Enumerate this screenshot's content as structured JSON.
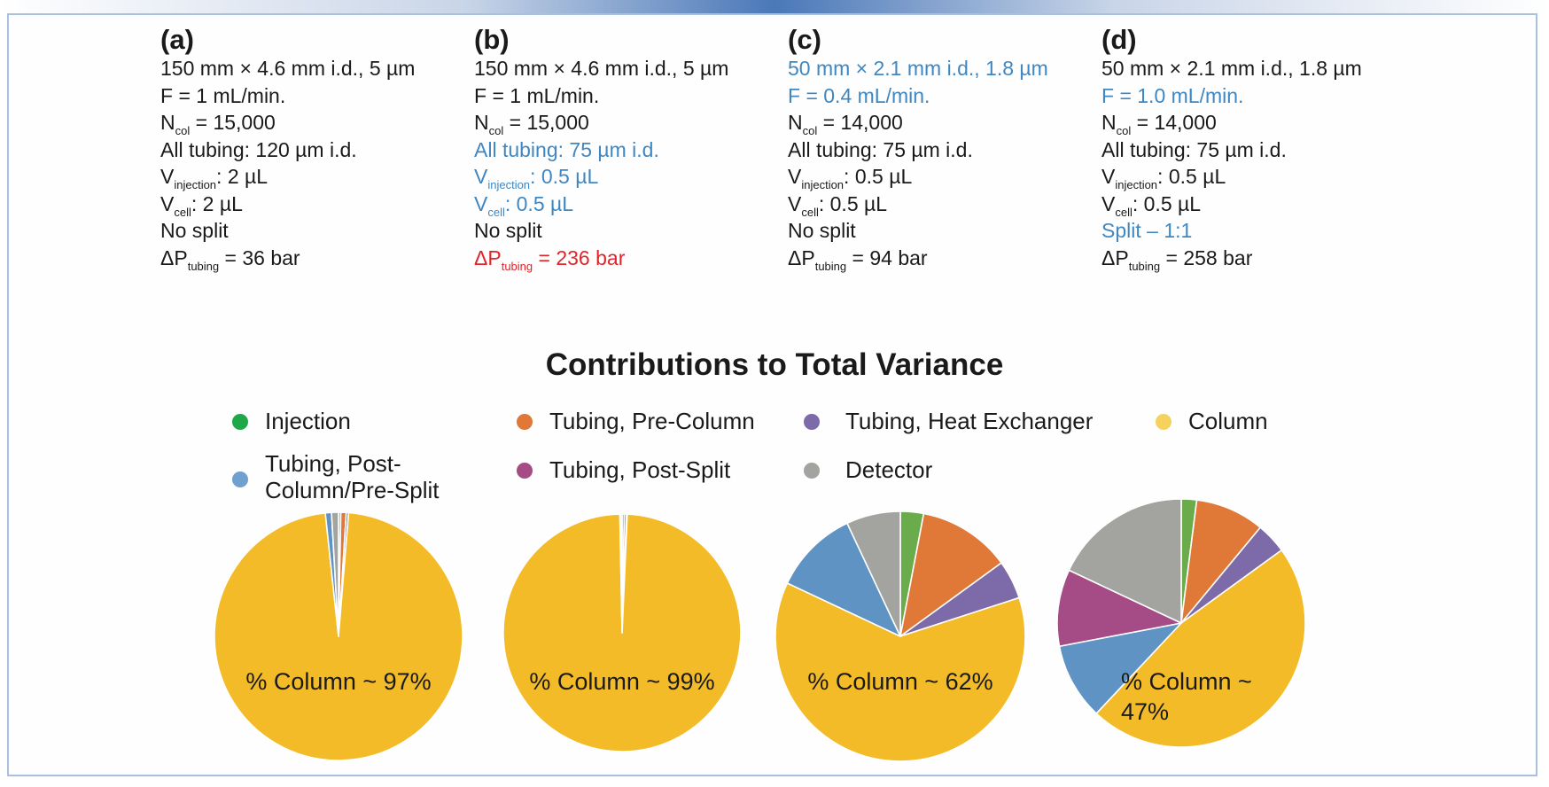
{
  "panels": [
    {
      "id": "a",
      "label": "(a)",
      "lines": [
        {
          "main": "150 mm × 4.6 mm i.d., 5 µm",
          "color": "default"
        },
        {
          "main": "F = 1 mL/min.",
          "color": "default"
        },
        {
          "main": "N",
          "sub": "col",
          "rest": " = 15,000",
          "color": "default"
        },
        {
          "main": "All tubing: 120 µm i.d.",
          "color": "default"
        },
        {
          "main": "V",
          "sub": "injection",
          "rest": ": 2 µL",
          "color": "default"
        },
        {
          "main": "V",
          "sub": "cell",
          "rest": ": 2 µL",
          "color": "default"
        },
        {
          "main": "No split",
          "color": "default"
        },
        {
          "main": "ΔP",
          "sub": "tubing",
          "rest": " = 36 bar",
          "color": "default"
        }
      ]
    },
    {
      "id": "b",
      "label": "(b)",
      "lines": [
        {
          "main": "150 mm × 4.6 mm i.d., 5 µm",
          "color": "default"
        },
        {
          "main": "F = 1 mL/min.",
          "color": "default"
        },
        {
          "main": "N",
          "sub": "col",
          "rest": " = 15,000",
          "color": "default"
        },
        {
          "main": "All tubing: 75 µm i.d.",
          "color": "blue"
        },
        {
          "main": "V",
          "sub": "injection",
          "rest": ": 0.5 µL",
          "color": "blue"
        },
        {
          "main": "V",
          "sub": "cell",
          "rest": ": 0.5 µL",
          "color": "blue"
        },
        {
          "main": "No split",
          "color": "default"
        },
        {
          "main": "ΔP",
          "sub": "tubing",
          "rest": " = 236 bar",
          "color": "red"
        }
      ]
    },
    {
      "id": "c",
      "label": "(c)",
      "lines": [
        {
          "main": "50 mm × 2.1 mm i.d., 1.8 µm",
          "color": "blue"
        },
        {
          "main": "F = 0.4 mL/min.",
          "color": "blue"
        },
        {
          "main": "N",
          "sub": "col",
          "rest": " = 14,000",
          "color": "default"
        },
        {
          "main": "All tubing: 75 µm i.d.",
          "color": "default"
        },
        {
          "main": "V",
          "sub": "injection",
          "rest": ": 0.5 µL",
          "color": "default"
        },
        {
          "main": "V",
          "sub": "cell",
          "rest": ": 0.5 µL",
          "color": "default"
        },
        {
          "main": "No split",
          "color": "default"
        },
        {
          "main": "ΔP",
          "sub": "tubing",
          "rest": " = 94 bar",
          "color": "default"
        }
      ]
    },
    {
      "id": "d",
      "label": "(d)",
      "lines": [
        {
          "main": "50 mm × 2.1 mm i.d., 1.8 µm",
          "color": "default"
        },
        {
          "main": "F = 1.0 mL/min.",
          "color": "blue"
        },
        {
          "main": "N",
          "sub": "col",
          "rest": " = 14,000",
          "color": "default"
        },
        {
          "main": "All tubing: 75 µm i.d.",
          "color": "default"
        },
        {
          "main": "V",
          "sub": "injection",
          "rest": ": 0.5 µL",
          "color": "default"
        },
        {
          "main": "V",
          "sub": "cell",
          "rest": ": 0.5 µL",
          "color": "default"
        },
        {
          "main": "Split – 1:1",
          "color": "blue"
        },
        {
          "main": "ΔP",
          "sub": "tubing",
          "rest": " = 258 bar",
          "color": "default"
        }
      ]
    }
  ],
  "colors": {
    "default_text": "#1a1a1a",
    "highlight_blue": "#3f87c2",
    "highlight_red": "#e2232a",
    "frame_border": "#a9c0df"
  },
  "chart_data": {
    "type": "pie",
    "title": "Contributions to Total Variance",
    "legend_position": "top",
    "legend": [
      {
        "key": "injection",
        "label": "Injection",
        "color": "#1ea84a"
      },
      {
        "key": "tubing_pre_column",
        "label": "Tubing, Pre-Column",
        "color": "#e07838"
      },
      {
        "key": "tubing_heat_exchanger",
        "label": "Tubing, Heat Exchanger",
        "color": "#7d6aa8"
      },
      {
        "key": "column",
        "label": "Column",
        "color": "#f5d25e"
      },
      {
        "key": "tubing_post_column_pre_split",
        "label": "Tubing, Post-Column/Pre-Split",
        "color": "#6fa0cf"
      },
      {
        "key": "tubing_post_split",
        "label": "Tubing, Post-Split",
        "color": "#a54c87"
      },
      {
        "key": "detector",
        "label": "Detector",
        "color": "#a3a3a0"
      }
    ],
    "slice_colors": {
      "injection": "#6aac4b",
      "tubing_pre_column": "#e07838",
      "tubing_heat_exchanger": "#7d6aa8",
      "column": "#f4bb29",
      "tubing_post_column_pre_split": "#5e93c4",
      "tubing_post_split": "#a54c87",
      "detector": "#a3a3a0"
    },
    "slice_order": [
      "injection",
      "tubing_pre_column",
      "tubing_heat_exchanger",
      "column",
      "tubing_post_column_pre_split",
      "tubing_post_split",
      "detector"
    ],
    "pies": [
      {
        "id": "a",
        "annotation": [
          "% Column ~ 97%"
        ],
        "values": {
          "injection": 0.3,
          "tubing_pre_column": 0.7,
          "tubing_heat_exchanger": 0.3,
          "column": 97,
          "tubing_post_column_pre_split": 0.8,
          "tubing_post_split": 0,
          "detector": 0.9
        }
      },
      {
        "id": "b",
        "annotation": [
          "% Column ~ 99%"
        ],
        "values": {
          "injection": 0.3,
          "tubing_pre_column": 0.3,
          "tubing_heat_exchanger": 0.1,
          "column": 99,
          "tubing_post_column_pre_split": 0.1,
          "tubing_post_split": 0,
          "detector": 0.2
        }
      },
      {
        "id": "c",
        "annotation": [
          "% Column ~ 62%"
        ],
        "values": {
          "injection": 3,
          "tubing_pre_column": 12,
          "tubing_heat_exchanger": 5,
          "column": 62,
          "tubing_post_column_pre_split": 11,
          "tubing_post_split": 0,
          "detector": 7
        }
      },
      {
        "id": "d",
        "annotation": [
          "% Column ~",
          "47%"
        ],
        "values": {
          "injection": 2,
          "tubing_pre_column": 9,
          "tubing_heat_exchanger": 4,
          "column": 47,
          "tubing_post_column_pre_split": 10,
          "tubing_post_split": 10,
          "detector": 18
        }
      }
    ]
  }
}
